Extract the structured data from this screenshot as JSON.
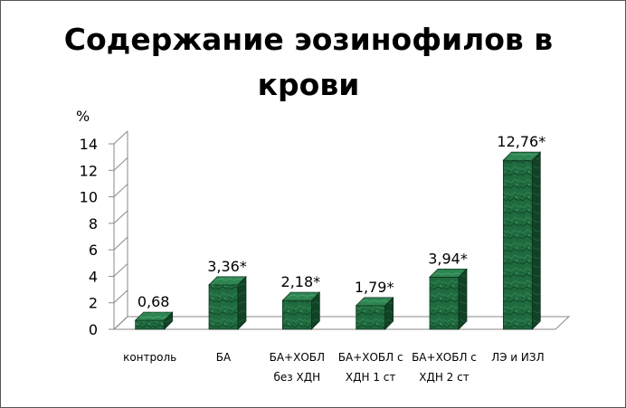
{
  "chart_data": {
    "type": "bar",
    "title": "Содержание эозинофилов в крови",
    "ylabel": "%",
    "xlabel": "",
    "ylim": [
      0,
      14
    ],
    "yticks": [
      0,
      2,
      4,
      6,
      8,
      10,
      12,
      14
    ],
    "categories": [
      [
        "контроль"
      ],
      [
        "БА"
      ],
      [
        "БА+ХОБЛ",
        "без ХДН"
      ],
      [
        "БА+ХОБЛ с",
        "ХДН 1 ст"
      ],
      [
        "БА+ХОБЛ с",
        "ХДН 2 ст"
      ],
      [
        "ЛЭ и ИЗЛ"
      ]
    ],
    "values": [
      0.68,
      3.36,
      2.18,
      1.79,
      3.94,
      12.76
    ],
    "data_labels": [
      "0,68",
      "3,36*",
      "2,18*",
      "1,79*",
      "3,94*",
      "12,76*"
    ],
    "grid": false,
    "colors": {
      "bar_front": "#1f6a3f",
      "bar_side": "#0f3d22",
      "bar_top": "#2f8a55",
      "axis": "#888888"
    }
  }
}
